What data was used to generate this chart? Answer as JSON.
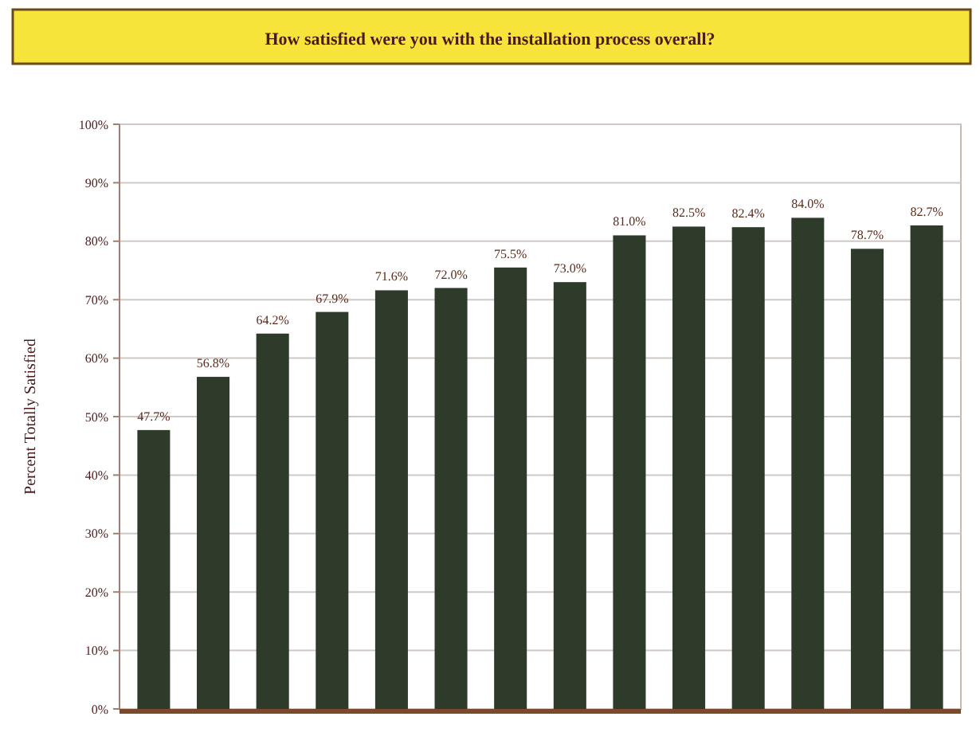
{
  "chart_data": {
    "type": "bar",
    "title": "How satisfied were you with the installation process overall?",
    "ylabel": "Percent Totally Satisfied",
    "categories": [
      null,
      null,
      null,
      null,
      null,
      null,
      null,
      null,
      null,
      null,
      null,
      null,
      null,
      null
    ],
    "values": [
      47.7,
      56.8,
      64.2,
      67.9,
      71.6,
      72.0,
      75.5,
      73.0,
      81.0,
      82.5,
      82.4,
      84.0,
      78.7,
      82.7
    ],
    "value_labels": [
      "47.7%",
      "56.8%",
      "64.2%",
      "67.9%",
      "71.6%",
      "72.0%",
      "75.5%",
      "73.0%",
      "81.0%",
      "82.5%",
      "82.4%",
      "84.0%",
      "78.7%",
      "82.7%"
    ],
    "color": "#2e3a2a",
    "ylim": [
      0,
      100
    ],
    "yticks": [
      {
        "value": 0,
        "label": "0%"
      },
      {
        "value": 10,
        "label": "10%"
      },
      {
        "value": 20,
        "label": "20%"
      },
      {
        "value": 30,
        "label": "30%"
      },
      {
        "value": 40,
        "label": "40%"
      },
      {
        "value": 50,
        "label": "50%"
      },
      {
        "value": 60,
        "label": "60%"
      },
      {
        "value": 70,
        "label": "70%"
      },
      {
        "value": 80,
        "label": "80%"
      },
      {
        "value": 90,
        "label": "90%"
      },
      {
        "value": 100,
        "label": "100%"
      }
    ],
    "grid": "y"
  }
}
